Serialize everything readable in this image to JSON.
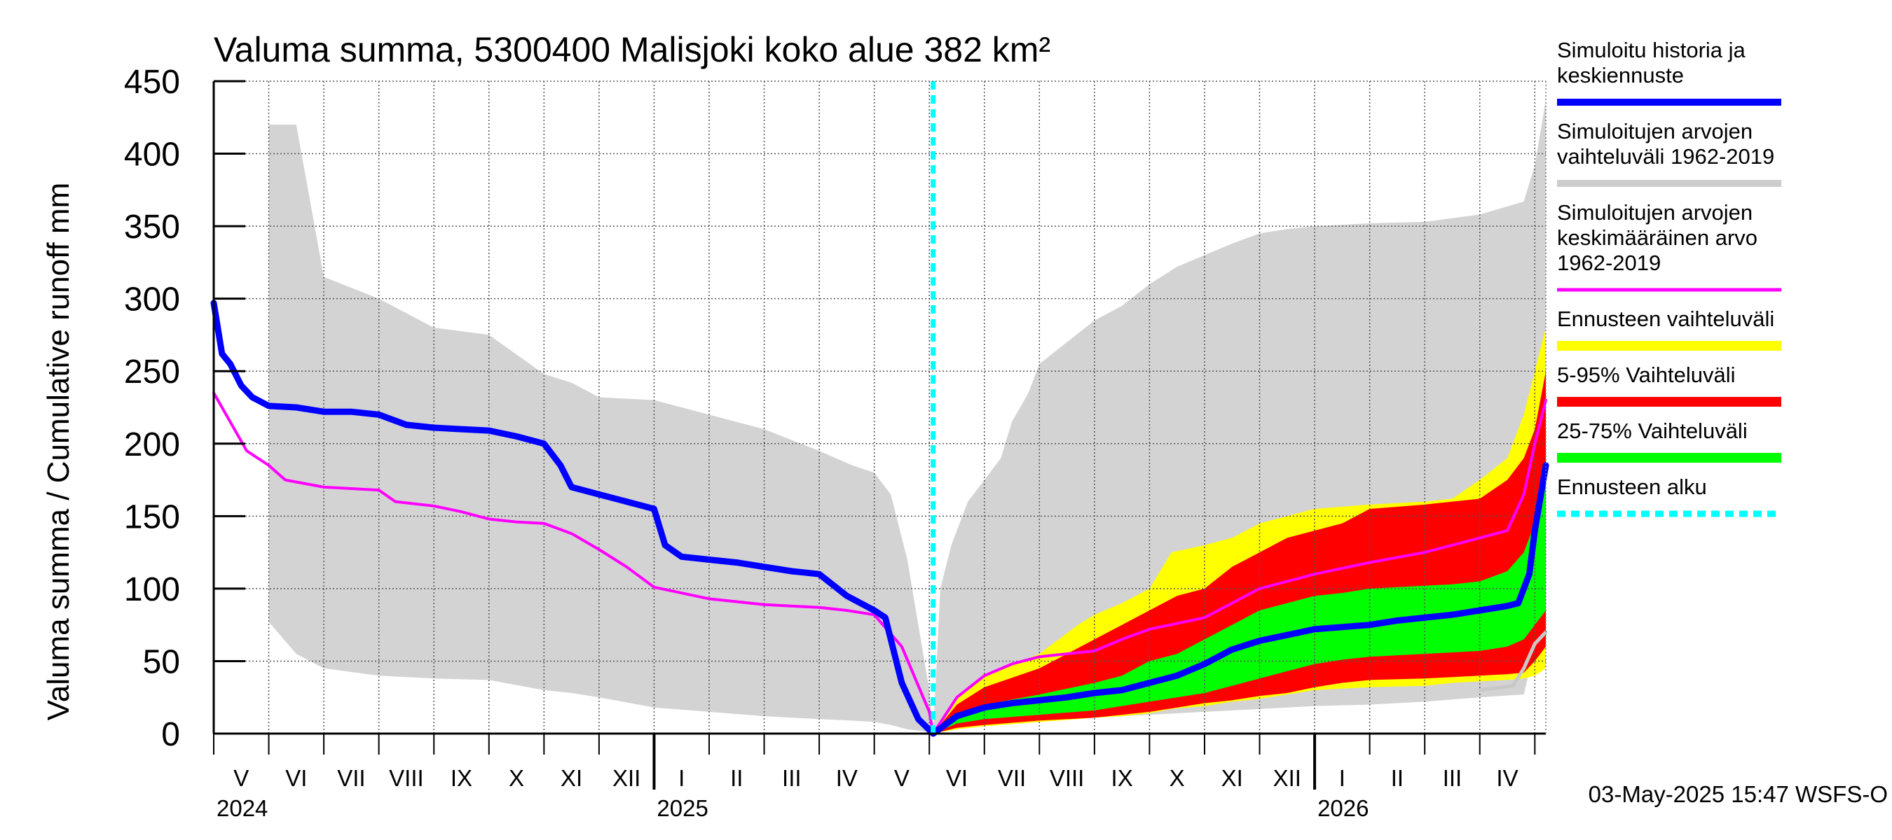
{
  "chart_data": {
    "type": "area",
    "title": "Valuma summa, 5300400 Malisjoki koko alue 382 km²",
    "ylabel": "Valuma summa / Cumulative runoff    mm",
    "ylim": [
      0,
      450
    ],
    "y_ticks": [
      0,
      50,
      100,
      150,
      200,
      250,
      300,
      350,
      400,
      450
    ],
    "x_unit": "months since 2024-04-01",
    "xlim": [
      0,
      24.2
    ],
    "forecast_start": 13.07,
    "months": [
      {
        "label": "V",
        "at": 1
      },
      {
        "label": "VI",
        "at": 2
      },
      {
        "label": "VII",
        "at": 3
      },
      {
        "label": "VIII",
        "at": 4
      },
      {
        "label": "IX",
        "at": 5
      },
      {
        "label": "X",
        "at": 6
      },
      {
        "label": "XI",
        "at": 7
      },
      {
        "label": "XII",
        "at": 8
      },
      {
        "label": "I",
        "at": 9
      },
      {
        "label": "II",
        "at": 10
      },
      {
        "label": "III",
        "at": 11
      },
      {
        "label": "IV",
        "at": 12
      },
      {
        "label": "V",
        "at": 13
      },
      {
        "label": "VI",
        "at": 14
      },
      {
        "label": "VII",
        "at": 15
      },
      {
        "label": "VIII",
        "at": 16
      },
      {
        "label": "IX",
        "at": 17
      },
      {
        "label": "X",
        "at": 18
      },
      {
        "label": "XI",
        "at": 19
      },
      {
        "label": "XII",
        "at": 20
      },
      {
        "label": "I",
        "at": 21
      },
      {
        "label": "II",
        "at": 22
      },
      {
        "label": "III",
        "at": 23
      },
      {
        "label": "IV",
        "at": 24
      }
    ],
    "years": [
      {
        "label": "2024",
        "at": 1
      },
      {
        "label": "2025",
        "at": 9
      },
      {
        "label": "2026",
        "at": 21
      }
    ],
    "series": [
      {
        "name": "Simuloitujen arvojen vaihteluväli 1962-2019",
        "kind": "band",
        "color": "#d3d3d3",
        "x": [
          1.0,
          1.5,
          2.0,
          3.0,
          4.0,
          5.0,
          6.0,
          6.5,
          7.0,
          8.0,
          9.0,
          10.0,
          11.0,
          11.6,
          12.0,
          12.3,
          12.6,
          13.0,
          13.07,
          13.2,
          13.4,
          13.7,
          14.0,
          14.3,
          14.5,
          14.8,
          15.0,
          15.5,
          16.0,
          16.5,
          17.0,
          17.5,
          18.0,
          18.5,
          19.0,
          19.5,
          20.0,
          21.0,
          22.0,
          23.0,
          23.8,
          24.0,
          24.2
        ],
        "upper": [
          420,
          420,
          315,
          300,
          280,
          275,
          248,
          242,
          232,
          230,
          220,
          210,
          195,
          185,
          180,
          165,
          120,
          30,
          0,
          100,
          130,
          160,
          175,
          190,
          215,
          235,
          255,
          270,
          285,
          295,
          310,
          322,
          330,
          338,
          345,
          348,
          350,
          352,
          353,
          358,
          367,
          392,
          437
        ],
        "lower": [
          77,
          55,
          45,
          40,
          38,
          37,
          30,
          28,
          25,
          18,
          15,
          12,
          10,
          9,
          8,
          6,
          3,
          1,
          0,
          2,
          3,
          4,
          5,
          6,
          7,
          8,
          9,
          10,
          11,
          12,
          13,
          14,
          15,
          16,
          17,
          18,
          19,
          20,
          22,
          25,
          27,
          60,
          65
        ]
      },
      {
        "name": "Ennusteen vaihteluväli",
        "kind": "band",
        "color": "#ffff00",
        "x": [
          13.07,
          13.5,
          14.0,
          15.0,
          15.7,
          16.0,
          16.5,
          17.0,
          17.4,
          18.0,
          18.5,
          19.0,
          19.5,
          20.0,
          21.0,
          22.0,
          22.5,
          23.0,
          23.5,
          23.8,
          24.0,
          24.2
        ],
        "upper": [
          0,
          25,
          40,
          55,
          75,
          82,
          90,
          100,
          125,
          130,
          135,
          145,
          150,
          155,
          158,
          160,
          162,
          175,
          190,
          220,
          250,
          280
        ],
        "lower": [
          0,
          3,
          5,
          8,
          10,
          11,
          12,
          14,
          17,
          19,
          22,
          24,
          27,
          30,
          32,
          33,
          35,
          36,
          37,
          38,
          40,
          45
        ]
      },
      {
        "name": "5-95% Vaihteluväli",
        "kind": "band",
        "color": "#ff0000",
        "x": [
          13.07,
          13.5,
          14.0,
          15.0,
          16.0,
          16.5,
          17.0,
          17.5,
          18.0,
          18.5,
          19.0,
          19.5,
          20.0,
          20.5,
          21.0,
          22.0,
          22.5,
          23.0,
          23.5,
          23.8,
          24.0,
          24.2
        ],
        "upper": [
          0,
          20,
          32,
          45,
          65,
          75,
          85,
          95,
          100,
          115,
          125,
          135,
          140,
          145,
          155,
          158,
          160,
          162,
          175,
          190,
          210,
          250
        ],
        "lower": [
          0,
          4,
          6,
          9,
          11,
          13,
          15,
          18,
          21,
          23,
          26,
          28,
          32,
          35,
          37,
          38,
          39,
          40,
          41,
          42,
          50,
          60
        ]
      },
      {
        "name": "25-75% Vaihteluväli",
        "kind": "band",
        "color": "#00ff00",
        "x": [
          13.07,
          13.5,
          14.0,
          15.0,
          16.0,
          16.5,
          17.0,
          17.5,
          18.0,
          18.5,
          19.0,
          19.5,
          20.0,
          20.5,
          21.0,
          22.0,
          22.5,
          23.0,
          23.5,
          23.8,
          24.0,
          24.2
        ],
        "upper": [
          0,
          12,
          20,
          27,
          35,
          40,
          50,
          55,
          65,
          75,
          85,
          90,
          95,
          97,
          100,
          102,
          103,
          105,
          112,
          125,
          145,
          175
        ],
        "lower": [
          0,
          7,
          10,
          13,
          16,
          19,
          22,
          25,
          28,
          33,
          38,
          43,
          48,
          51,
          53,
          55,
          56,
          57,
          60,
          65,
          75,
          85
        ]
      },
      {
        "name": "Simuloitujen arvojen keskimääräinen arvo 1962-2019",
        "kind": "line",
        "color": "#ff00ff",
        "x": [
          0.0,
          0.3,
          0.6,
          1.0,
          1.3,
          2.0,
          3.0,
          3.3,
          4.0,
          4.5,
          5.0,
          5.5,
          6.0,
          6.5,
          7.0,
          7.5,
          8.0,
          9.0,
          10.0,
          11.0,
          11.5,
          12.0,
          12.5,
          13.0,
          13.07,
          13.5,
          14.0,
          14.5,
          15.0,
          16.0,
          16.5,
          17.0,
          18.0,
          18.5,
          19.0,
          20.0,
          21.0,
          22.0,
          22.5,
          23.0,
          23.5,
          23.8,
          24.0,
          24.2
        ],
        "y": [
          235,
          215,
          195,
          185,
          175,
          170,
          168,
          160,
          157,
          153,
          148,
          146,
          145,
          138,
          127,
          115,
          101,
          93,
          89,
          87,
          85,
          82,
          60,
          15,
          0,
          25,
          40,
          48,
          53,
          57,
          65,
          72,
          80,
          90,
          100,
          110,
          118,
          125,
          130,
          135,
          140,
          165,
          200,
          230
        ]
      },
      {
        "name": "Simuloitu historia ja keskiennuste",
        "kind": "line",
        "color": "#0000ff",
        "x": [
          0.0,
          0.15,
          0.3,
          0.5,
          0.7,
          1.0,
          1.5,
          2.0,
          2.5,
          3.0,
          3.5,
          4.0,
          4.5,
          5.0,
          5.5,
          6.0,
          6.3,
          6.5,
          7.0,
          7.5,
          7.8,
          8.0,
          8.2,
          8.5,
          9.0,
          9.5,
          10.0,
          10.5,
          11.0,
          11.5,
          12.0,
          12.2,
          12.5,
          12.8,
          13.07,
          13.5,
          14.0,
          14.5,
          15.0,
          15.5,
          16.0,
          16.5,
          17.0,
          17.5,
          18.0,
          18.5,
          19.0,
          19.5,
          20.0,
          21.0,
          21.5,
          22.0,
          22.5,
          23.0,
          23.5,
          23.7,
          23.9,
          24.0,
          24.2
        ],
        "y": [
          297,
          262,
          255,
          240,
          232,
          226,
          225,
          222,
          222,
          220,
          213,
          211,
          210,
          209,
          205,
          200,
          185,
          170,
          165,
          160,
          157,
          155,
          130,
          122,
          120,
          118,
          115,
          112,
          110,
          95,
          85,
          80,
          35,
          10,
          0,
          12,
          18,
          21,
          23,
          25,
          28,
          30,
          35,
          40,
          48,
          58,
          64,
          68,
          72,
          75,
          78,
          80,
          82,
          85,
          88,
          90,
          110,
          140,
          185
        ]
      },
      {
        "name": "Grey lower bound line",
        "kind": "line-unlabelled",
        "color": "#c8c8c8",
        "x": [
          23.0,
          23.6,
          23.8,
          24.0,
          24.2
        ],
        "y": [
          30,
          33,
          45,
          62,
          70
        ]
      }
    ],
    "legend_placement": "right",
    "grid": true
  },
  "legend": [
    {
      "lines": [
        "Simuloitu historia ja",
        "keskiennuste"
      ],
      "color": "#0000ff",
      "style": "solid"
    },
    {
      "lines": [
        "Simuloitujen arvojen",
        "vaihteluväli 1962-2019"
      ],
      "color": "#cccccc",
      "style": "solid"
    },
    {
      "lines": [
        "Simuloitujen arvojen",
        "keskimääräinen arvo",
        "   1962-2019"
      ],
      "color": "#ff00ff",
      "style": "thin"
    },
    {
      "lines": [
        "Ennusteen vaihteluväli"
      ],
      "color": "#ffff00",
      "style": "thick"
    },
    {
      "lines": [
        "5-95% Vaihteluväli"
      ],
      "color": "#ff0000",
      "style": "thick"
    },
    {
      "lines": [
        "25-75% Vaihteluväli"
      ],
      "color": "#00ff00",
      "style": "thick"
    },
    {
      "lines": [
        "Ennusteen alku"
      ],
      "color": "#00ffff",
      "style": "dashed"
    }
  ],
  "footer": {
    "timestamp": "03-May-2025 15:47 WSFS-O"
  }
}
